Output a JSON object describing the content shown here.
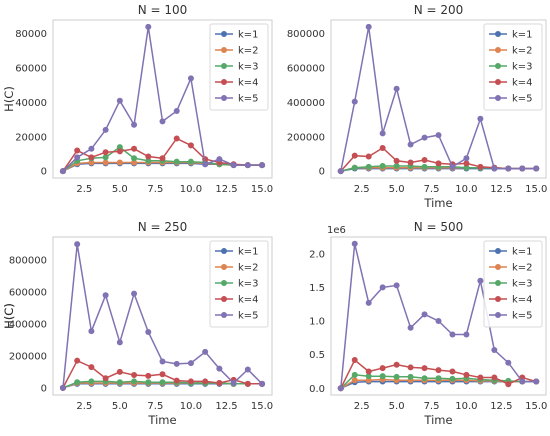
{
  "colors": {
    "k1": "#4C72B0",
    "k2": "#DD8452",
    "k3": "#55A868",
    "k4": "#C44E52",
    "k5": "#8172B3",
    "axis": "#cccccc"
  },
  "chart_data": [
    {
      "type": "line",
      "title": "N = 100",
      "xlabel": "",
      "ylabel": "H(C)",
      "xlim": [
        0.3,
        15.7
      ],
      "ylim": [
        -4000,
        88000
      ],
      "xticks": [
        2.5,
        5.0,
        7.5,
        10.0,
        12.5,
        15.0
      ],
      "xtick_labels": [
        "2.5",
        "5.0",
        "7.5",
        "10.0",
        "12.5",
        "15.0"
      ],
      "yticks": [
        0,
        20000,
        40000,
        60000,
        80000
      ],
      "ytick_labels": [
        "0",
        "20000",
        "40000",
        "60000",
        "80000"
      ],
      "y_offset_label": "",
      "legend": "upper-right",
      "grid": false,
      "x": [
        1,
        2,
        3,
        4,
        5,
        6,
        7,
        8,
        9,
        10,
        11,
        12,
        13,
        14,
        15
      ],
      "series": [
        {
          "name": "k=1",
          "color_key": "k1",
          "values": [
            0,
            4000,
            4500,
            4500,
            4500,
            4500,
            4500,
            4500,
            4500,
            4500,
            4000,
            4000,
            3500,
            3500,
            3500
          ]
        },
        {
          "name": "k=2",
          "color_key": "k2",
          "values": [
            0,
            4500,
            5000,
            5000,
            5000,
            5000,
            5000,
            5000,
            5000,
            5000,
            4500,
            4000,
            3500,
            3500,
            3500
          ]
        },
        {
          "name": "k=3",
          "color_key": "k3",
          "values": [
            0,
            6000,
            7500,
            8000,
            14000,
            7500,
            6000,
            6000,
            5500,
            5500,
            5000,
            4000,
            3500,
            3500,
            3500
          ]
        },
        {
          "name": "k=4",
          "color_key": "k4",
          "values": [
            0,
            12000,
            8000,
            11000,
            11500,
            13000,
            8500,
            7500,
            19000,
            15000,
            7000,
            5000,
            4000,
            3500,
            3500
          ]
        },
        {
          "name": "k=5",
          "color_key": "k5",
          "values": [
            0,
            8000,
            13000,
            24000,
            41000,
            27000,
            84000,
            29000,
            35000,
            54000,
            4000,
            7000,
            3500,
            3500,
            3500
          ]
        }
      ]
    },
    {
      "type": "line",
      "title": "N = 200",
      "xlabel": "Time",
      "ylabel": "",
      "xlim": [
        0.3,
        15.7
      ],
      "ylim": [
        -40000,
        880000
      ],
      "xticks": [
        2.5,
        5.0,
        7.5,
        10.0,
        12.5,
        15.0
      ],
      "xtick_labels": [
        "2.5",
        "5.0",
        "7.5",
        "10.0",
        "12.5",
        "15.0"
      ],
      "yticks": [
        0,
        200000,
        400000,
        600000,
        800000
      ],
      "ytick_labels": [
        "0",
        "200000",
        "400000",
        "600000",
        "800000"
      ],
      "y_offset_label": "",
      "legend": "upper-right",
      "grid": false,
      "x": [
        1,
        2,
        3,
        4,
        5,
        6,
        7,
        8,
        9,
        10,
        11,
        12,
        13,
        14,
        15
      ],
      "series": [
        {
          "name": "k=1",
          "color_key": "k1",
          "values": [
            0,
            15000,
            15000,
            15000,
            15000,
            15000,
            15000,
            15000,
            15000,
            15000,
            15000,
            15000,
            15000,
            15000,
            15000
          ]
        },
        {
          "name": "k=2",
          "color_key": "k2",
          "values": [
            0,
            20000,
            20000,
            20000,
            20000,
            20000,
            20000,
            20000,
            20000,
            20000,
            20000,
            20000,
            15000,
            15000,
            15000
          ]
        },
        {
          "name": "k=3",
          "color_key": "k3",
          "values": [
            0,
            20000,
            25000,
            30000,
            30000,
            30000,
            25000,
            25000,
            25000,
            20000,
            20000,
            20000,
            15000,
            15000,
            15000
          ]
        },
        {
          "name": "k=4",
          "color_key": "k4",
          "values": [
            0,
            90000,
            85000,
            135000,
            60000,
            50000,
            65000,
            45000,
            40000,
            45000,
            25000,
            20000,
            15000,
            15000,
            15000
          ]
        },
        {
          "name": "k=5",
          "color_key": "k5",
          "values": [
            0,
            405000,
            840000,
            220000,
            480000,
            155000,
            195000,
            210000,
            25000,
            75000,
            305000,
            15000,
            15000,
            15000,
            15000
          ]
        }
      ]
    },
    {
      "type": "line",
      "title": "N = 250",
      "xlabel": "Time",
      "ylabel": "H(C)",
      "xlim": [
        0.3,
        15.7
      ],
      "ylim": [
        -45000,
        945000
      ],
      "xticks": [
        2.5,
        5.0,
        7.5,
        10.0,
        12.5,
        15.0
      ],
      "xtick_labels": [
        "2.5",
        "5.0",
        "7.5",
        "10.0",
        "12.5",
        "15.0"
      ],
      "yticks": [
        0,
        200000,
        400000,
        600000,
        800000
      ],
      "ytick_labels": [
        "0",
        "200000",
        "400000",
        "600000",
        "800000"
      ],
      "y_offset_label": "",
      "legend": "upper-right",
      "grid": false,
      "x": [
        1,
        2,
        3,
        4,
        5,
        6,
        7,
        8,
        9,
        10,
        11,
        12,
        13,
        14,
        15
      ],
      "series": [
        {
          "name": "k=1",
          "color_key": "k1",
          "values": [
            0,
            25000,
            25000,
            25000,
            25000,
            25000,
            25000,
            25000,
            25000,
            25000,
            25000,
            25000,
            25000,
            25000,
            25000
          ]
        },
        {
          "name": "k=2",
          "color_key": "k2",
          "values": [
            0,
            30000,
            30000,
            30000,
            30000,
            30000,
            30000,
            30000,
            30000,
            30000,
            30000,
            30000,
            25000,
            25000,
            25000
          ]
        },
        {
          "name": "k=3",
          "color_key": "k3",
          "values": [
            0,
            35000,
            40000,
            40000,
            35000,
            40000,
            35000,
            35000,
            35000,
            30000,
            30000,
            30000,
            25000,
            25000,
            25000
          ]
        },
        {
          "name": "k=4",
          "color_key": "k4",
          "values": [
            0,
            170000,
            130000,
            60000,
            100000,
            80000,
            75000,
            85000,
            45000,
            40000,
            40000,
            30000,
            50000,
            25000,
            25000
          ]
        },
        {
          "name": "k=5",
          "color_key": "k5",
          "values": [
            0,
            900000,
            355000,
            580000,
            285000,
            590000,
            350000,
            165000,
            150000,
            155000,
            225000,
            120000,
            30000,
            115000,
            25000
          ]
        }
      ]
    },
    {
      "type": "line",
      "title": "N = 500",
      "xlabel": "Time",
      "ylabel": "H(C)",
      "xlim": [
        0.3,
        15.7
      ],
      "ylim": [
        -0.1,
        2.25
      ],
      "xticks": [
        2.5,
        5.0,
        7.5,
        10.0,
        12.5,
        15.0
      ],
      "xtick_labels": [
        "2.5",
        "5.0",
        "7.5",
        "10.0",
        "12.5",
        "15.0"
      ],
      "yticks": [
        0,
        0.5,
        1.0,
        1.5,
        2.0
      ],
      "ytick_labels": [
        "0.0",
        "0.5",
        "1.0",
        "1.5",
        "2.0"
      ],
      "y_offset_label": "1e6",
      "legend": "upper-right",
      "grid": false,
      "x": [
        1,
        2,
        3,
        4,
        5,
        6,
        7,
        8,
        9,
        10,
        11,
        12,
        13,
        14,
        15
      ],
      "series": [
        {
          "name": "k=1",
          "color_key": "k1",
          "values": [
            0,
            0.09,
            0.1,
            0.1,
            0.1,
            0.1,
            0.1,
            0.1,
            0.1,
            0.1,
            0.1,
            0.1,
            0.1,
            0.1,
            0.1
          ]
        },
        {
          "name": "k=2",
          "color_key": "k2",
          "values": [
            0,
            0.12,
            0.12,
            0.13,
            0.12,
            0.12,
            0.12,
            0.12,
            0.12,
            0.12,
            0.11,
            0.11,
            0.1,
            0.1,
            0.1
          ]
        },
        {
          "name": "k=3",
          "color_key": "k3",
          "values": [
            0,
            0.2,
            0.18,
            0.18,
            0.17,
            0.17,
            0.15,
            0.15,
            0.14,
            0.15,
            0.13,
            0.12,
            0.11,
            0.1,
            0.1
          ]
        },
        {
          "name": "k=4",
          "color_key": "k4",
          "values": [
            0,
            0.42,
            0.25,
            0.3,
            0.35,
            0.31,
            0.3,
            0.27,
            0.25,
            0.2,
            0.16,
            0.16,
            0.06,
            0.16,
            0.1
          ]
        },
        {
          "name": "k=5",
          "color_key": "k5",
          "values": [
            0,
            2.15,
            1.27,
            1.5,
            1.53,
            0.9,
            1.1,
            1.0,
            0.8,
            0.8,
            1.6,
            0.57,
            0.38,
            0.1,
            0.1
          ]
        }
      ]
    }
  ]
}
